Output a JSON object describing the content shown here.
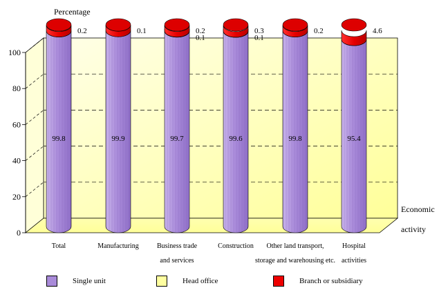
{
  "chart_data": {
    "type": "bar",
    "style": "3d-stacked-cylinder",
    "ylabel": "Percentage",
    "xlabel_lines": [
      "Economic",
      "activity"
    ],
    "ylim": [
      0,
      100
    ],
    "yticks": [
      0,
      20,
      40,
      60,
      80,
      100
    ],
    "categories": [
      [
        "Total",
        ""
      ],
      [
        "Manufacturing",
        ""
      ],
      [
        "Business trade",
        "and  services"
      ],
      [
        "Construction",
        ""
      ],
      [
        "Other land transport,",
        "storage and warehousing etc."
      ],
      [
        "Hospital",
        "activities"
      ]
    ],
    "series": [
      {
        "name": "Single unit",
        "color": "#a98bd9",
        "values": [
          99.8,
          99.9,
          99.7,
          99.6,
          99.8,
          95.4
        ],
        "labels": [
          "99.8",
          "99.9",
          "99.7",
          "99.6",
          "99.8",
          "95.4"
        ]
      },
      {
        "name": "Head office",
        "color": "#ffffa0",
        "values": [
          0,
          0,
          0.1,
          0.1,
          0,
          0
        ],
        "labels": [
          "",
          "",
          "0.1",
          "0.1",
          "",
          ""
        ]
      },
      {
        "name": "Branch or subsidiary",
        "color": "#ee0000",
        "values": [
          0.2,
          0.1,
          0.2,
          0.3,
          0.2,
          4.6
        ],
        "labels": [
          "0.2",
          "0.1",
          "0.2",
          "0.3",
          "0.2",
          "4.6"
        ]
      }
    ],
    "grid": "dashed-horizontal",
    "legend_position": "bottom",
    "wall_color": "#ffffcc"
  }
}
